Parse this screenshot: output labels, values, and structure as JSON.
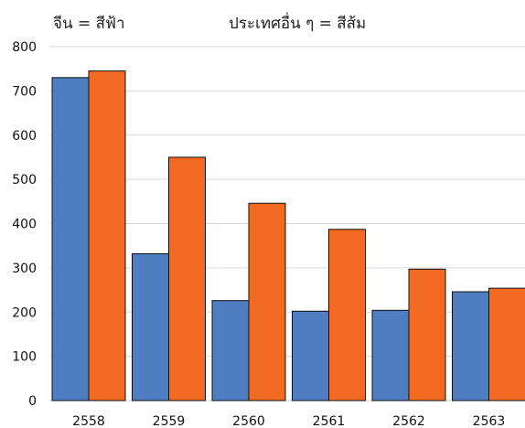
{
  "chart_data": {
    "type": "bar",
    "title": "",
    "xlabel": "",
    "ylabel": "",
    "legend_text": [
      "จีน = สีฟ้า",
      "ประเทศอื่น ๆ = สีส้ม"
    ],
    "legend_placement": "top",
    "categories": [
      "2558",
      "2559",
      "2560",
      "2561",
      "2562",
      "2563"
    ],
    "series": [
      {
        "values": [
          730,
          332,
          226,
          202,
          204,
          246
        ],
        "color": "#4f7dc1"
      },
      {
        "values": [
          745,
          550,
          446,
          387,
          297,
          254
        ],
        "color": "#f26a21"
      }
    ],
    "ylim": [
      0,
      800
    ],
    "yticks": [
      0,
      100,
      200,
      300,
      400,
      500,
      600,
      700,
      800
    ],
    "grid": true
  }
}
